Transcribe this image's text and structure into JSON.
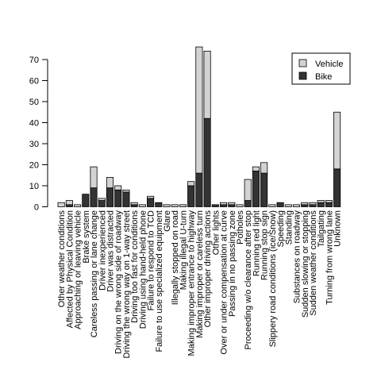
{
  "chart_data": {
    "type": "bar",
    "stacked": true,
    "title": "",
    "xlabel": "",
    "ylabel": "",
    "ylim": [
      0,
      76
    ],
    "yticks": [
      0,
      10,
      20,
      30,
      40,
      50,
      60,
      70
    ],
    "categories": [
      "Other weather conditions",
      "Affected by Physical Condition",
      "Approaching or leaving vehicle",
      "Brake system",
      "Careless passing or lane change",
      "Driver inexperienced",
      "Driver was distracted",
      "Driving on the wrong side of roadway",
      "Driving the wrong way on 1-way street",
      "Driving too fast for conditions",
      "Driving using hand-held phone",
      "Failure to respond to TCD",
      "Failure to use specialized equipment",
      "Glare",
      "Illegally stopped on road",
      "Making illegal U-turn",
      "Making improper entrance to highway",
      "Making improper or careless turn",
      "Other improper driving actions",
      "Other lights",
      "Over or under compensation at curve",
      "Passing in no passing zone",
      "Potholes",
      "Proceeding w/o clearance after stop",
      "Running red light",
      "Running stop sign",
      "Slippery road conditions (ice/Snow)",
      "Speeding",
      "Standing",
      "Substances on roadway",
      "Sudden slowing or stopping",
      "Sudden weather conditions",
      "Tailgating",
      "Turning from wrong lane",
      "Unknown"
    ],
    "series": [
      {
        "name": "Bike",
        "color": "#333333",
        "values": [
          0,
          1,
          0,
          6,
          9,
          3,
          9,
          8,
          7,
          1,
          0,
          4,
          2,
          0,
          0,
          0,
          10,
          16,
          42,
          1,
          1,
          1,
          0,
          3,
          17,
          16,
          0,
          2,
          0,
          0,
          1,
          1,
          2,
          2,
          18
        ]
      },
      {
        "name": "Vehicle",
        "color": "#d3d3d3",
        "values": [
          2,
          2,
          1,
          0,
          10,
          1,
          5,
          2,
          1,
          1,
          1,
          1,
          0,
          1,
          1,
          1,
          2,
          60,
          32,
          0,
          1,
          1,
          1,
          10,
          2,
          5,
          1,
          0,
          1,
          1,
          1,
          1,
          1,
          1,
          27
        ]
      }
    ],
    "legend": {
      "position": "top-right",
      "entries": [
        "Vehicle",
        "Bike"
      ]
    }
  }
}
